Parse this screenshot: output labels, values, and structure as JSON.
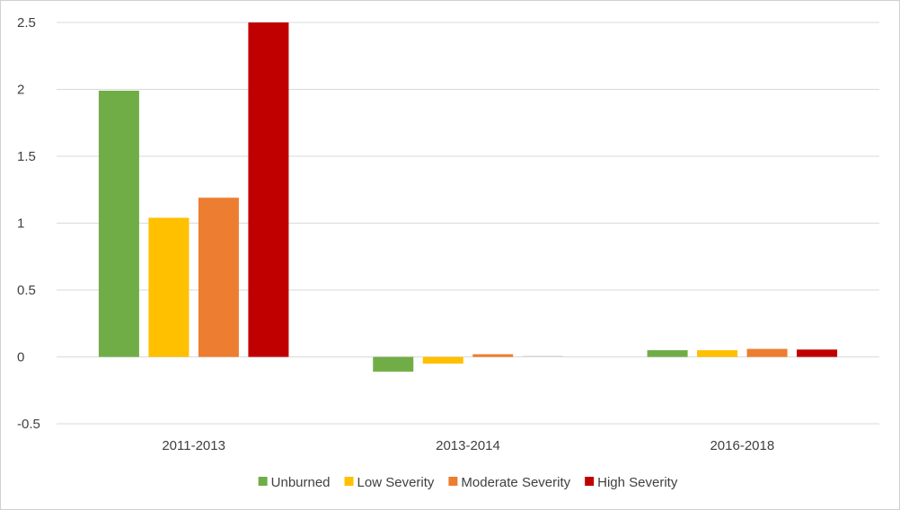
{
  "chart_data": {
    "type": "bar",
    "title": "",
    "xlabel": "",
    "ylabel": "",
    "categories": [
      "2011-2013",
      "2013-2014",
      "2016-2018"
    ],
    "series": [
      {
        "name": "Unburned",
        "color": "#70ad47",
        "values": [
          1.99,
          -0.11,
          0.05
        ]
      },
      {
        "name": "Low Severity",
        "color": "#ffc000",
        "values": [
          1.04,
          -0.05,
          0.05
        ]
      },
      {
        "name": "Moderate Severity",
        "color": "#ed7d31",
        "values": [
          1.19,
          0.02,
          0.06
        ]
      },
      {
        "name": "High Severity",
        "color": "#c00000",
        "values": [
          2.5,
          0.01,
          0.055
        ]
      }
    ],
    "ylim": [
      -0.5,
      2.5
    ],
    "yticks": [
      -0.5,
      0,
      0.5,
      1,
      1.5,
      2,
      2.5
    ],
    "ytick_labels": [
      "-0.5",
      "0",
      "0.5",
      "1",
      "1.5",
      "2",
      "2.5"
    ],
    "grid": true,
    "legend_position": "bottom",
    "gridline_color": "#d9d9d9",
    "faded_bar_color": "#e0e0e0"
  }
}
